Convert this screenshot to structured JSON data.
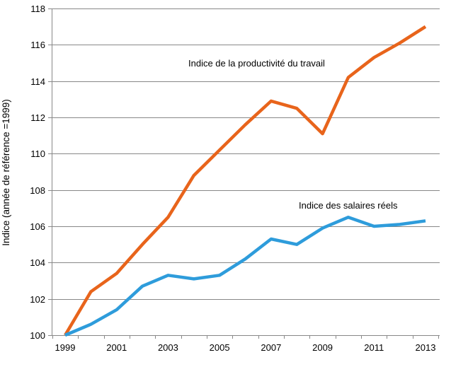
{
  "chart_data": {
    "type": "line",
    "title": "",
    "xlabel": "",
    "ylabel": "Indice (année de référence =1999)",
    "x": [
      1999,
      2000,
      2001,
      2002,
      2003,
      2004,
      2005,
      2006,
      2007,
      2008,
      2009,
      2010,
      2011,
      2012,
      2013
    ],
    "xticks": [
      "1999",
      "2001",
      "2003",
      "2005",
      "2007",
      "2009",
      "2011",
      "2013"
    ],
    "yticks": [
      "100",
      "102",
      "104",
      "106",
      "108",
      "110",
      "112",
      "114",
      "116",
      "118"
    ],
    "ylim": [
      100,
      118
    ],
    "grid": true,
    "legend": "none",
    "series": [
      {
        "name": "Indice de la productivité du travail",
        "color": "#E8641B",
        "values": [
          100,
          102.4,
          103.4,
          105.0,
          106.5,
          108.8,
          110.2,
          111.6,
          112.9,
          112.5,
          111.1,
          114.2,
          115.3,
          116.1,
          117.0
        ]
      },
      {
        "name": "Indice des salaires réels",
        "color": "#2E9CDB",
        "values": [
          100,
          100.6,
          101.4,
          102.7,
          103.3,
          103.1,
          103.3,
          104.2,
          105.3,
          105.0,
          105.9,
          106.5,
          106.0,
          106.1,
          106.3
        ]
      }
    ]
  }
}
